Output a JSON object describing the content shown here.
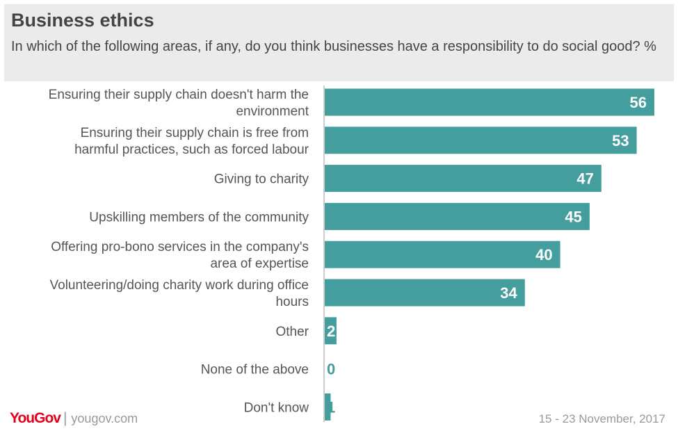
{
  "title": "Business ethics",
  "subtitle": "In which of the following areas, if any, do you think businesses have a responsibility to do social good? %",
  "footer": {
    "brand": "YouGov",
    "website": "yougov.com",
    "date_range": "15 - 23 November, 2017"
  },
  "colors": {
    "bar": "#449e9e",
    "value_inside": "#ffffff",
    "value_outside": "#449e9e",
    "label": "#555555"
  },
  "chart_data": {
    "type": "bar",
    "orientation": "horizontal",
    "categories": [
      [
        "Ensuring their supply chain doesn't harm the",
        "environment"
      ],
      [
        "Ensuring their supply chain is free from",
        "harmful practices, such as forced labour"
      ],
      [
        "Giving to charity"
      ],
      [
        "Upskilling members of the community"
      ],
      [
        "Offering pro-bono services in the company's",
        "area of expertise"
      ],
      [
        "Volunteering/doing charity work during office",
        "hours"
      ],
      [
        "Other"
      ],
      [
        "None of the above"
      ],
      [
        "Don't know"
      ]
    ],
    "values": [
      56,
      53,
      47,
      45,
      40,
      34,
      2,
      0,
      1
    ],
    "xlim": [
      0,
      56
    ],
    "unit": "%"
  }
}
